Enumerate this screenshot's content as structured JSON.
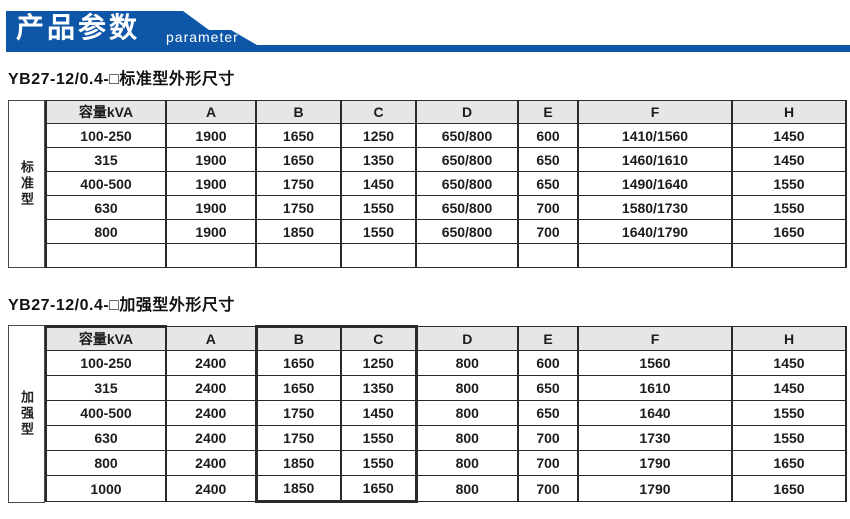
{
  "banner": {
    "title": "产品参数",
    "subtitle": "parameter",
    "color": "#0e56a8"
  },
  "section1": {
    "title": "YB27-12/0.4-□标准型外形尺寸",
    "side_label": "标准型",
    "columns": [
      "容量kVA",
      "A",
      "B",
      "C",
      "D",
      "E",
      "F",
      "H"
    ],
    "rows": [
      [
        "100-250",
        "1900",
        "1650",
        "1250",
        "650/800",
        "600",
        "1410/1560",
        "1450"
      ],
      [
        "315",
        "1900",
        "1650",
        "1350",
        "650/800",
        "650",
        "1460/1610",
        "1450"
      ],
      [
        "400-500",
        "1900",
        "1750",
        "1450",
        "650/800",
        "650",
        "1490/1640",
        "1550"
      ],
      [
        "630",
        "1900",
        "1750",
        "1550",
        "650/800",
        "700",
        "1580/1730",
        "1550"
      ],
      [
        "800",
        "1900",
        "1850",
        "1550",
        "650/800",
        "700",
        "1640/1790",
        "1650"
      ],
      [
        "",
        "",
        "",
        "",
        "",
        "",
        "",
        ""
      ]
    ]
  },
  "section2": {
    "title": "YB27-12/0.4-□加强型外形尺寸",
    "side_label": "加强型",
    "columns": [
      "容量kVA",
      "A",
      "B",
      "C",
      "D",
      "E",
      "F",
      "H"
    ],
    "rows": [
      [
        "100-250",
        "2400",
        "1650",
        "1250",
        "800",
        "600",
        "1560",
        "1450"
      ],
      [
        "315",
        "2400",
        "1650",
        "1350",
        "800",
        "650",
        "1610",
        "1450"
      ],
      [
        "400-500",
        "2400",
        "1750",
        "1450",
        "800",
        "650",
        "1640",
        "1550"
      ],
      [
        "630",
        "2400",
        "1750",
        "1550",
        "800",
        "700",
        "1730",
        "1550"
      ],
      [
        "800",
        "2400",
        "1850",
        "1550",
        "800",
        "700",
        "1790",
        "1650"
      ],
      [
        "1000",
        "2400",
        "1850",
        "1650",
        "800",
        "700",
        "1790",
        "1650"
      ]
    ]
  }
}
